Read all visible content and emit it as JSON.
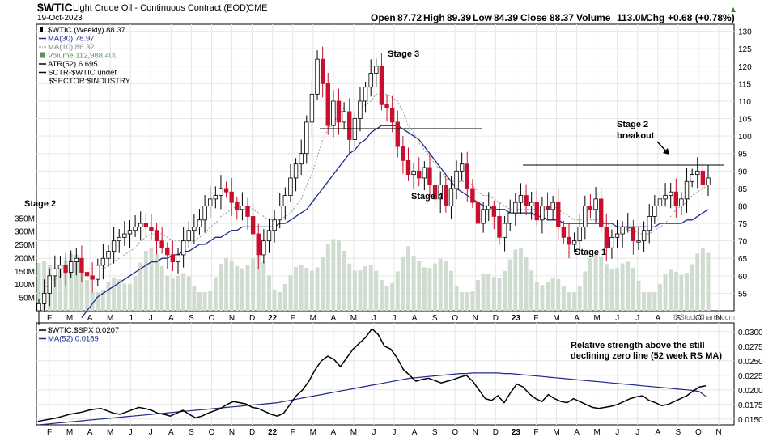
{
  "header": {
    "symbol": "$WTIC",
    "name": "Light Crude Oil - Continuous Contract (EOD)",
    "exchange": "CME",
    "date": "19-Oct-2023",
    "open_label": "Open",
    "open": "87.72",
    "high_label": "High",
    "high": "89.39",
    "low_label": "Low",
    "low": "84.39",
    "close_label": "Close",
    "close": "88.37",
    "volume_label": "Volume",
    "volume": "113.0M",
    "chg_label": "Chg",
    "chg": "+0.68 (+0.78%)",
    "watermark": "@StockCharts.com"
  },
  "legend": [
    {
      "text": "$WTIC (Weekly) 88.37",
      "color": "#000000",
      "mark": "candle"
    },
    {
      "text": "MA(30) 78.97",
      "color": "#1f2a8c",
      "mark": "line"
    },
    {
      "text": "MA(10) 86.32",
      "color": "#888888",
      "mark": "dotted"
    },
    {
      "text": "Volume 112,988,400",
      "color": "#5e8f5e",
      "mark": "bars"
    },
    {
      "text": "ATR(52) 6.695",
      "color": "#000000",
      "mark": "line"
    },
    {
      "text": "SCTR-$WTIC undef",
      "color": "#000000",
      "mark": "line"
    },
    {
      "text": "$SECTOR:$INDUSTRY",
      "color": "#000000",
      "mark": "none"
    }
  ],
  "annotations": {
    "stage2_left": "Stage 2",
    "stage3": "Stage 3",
    "stage4": "Stage 4",
    "stage1": "Stage 1",
    "stage2_breakout_1": "Stage 2",
    "stage2_breakout_2": "breakout",
    "rs_note_1": "Relative strength above the still",
    "rs_note_2": "declining zero line (52 week RS MA)"
  },
  "lower_legend": [
    {
      "text": "$WTIC:$SPX 0.0207",
      "color": "#000000"
    },
    {
      "text": "MA(52) 0.0189",
      "color": "#1f2a8c"
    }
  ],
  "colors": {
    "up": "#ffffff",
    "down": "#c8102e",
    "ma30": "#1f2a8c",
    "ma10": "#999999",
    "volume": "#cfdccf",
    "grid": "#e6e6e6"
  },
  "chart_data": [
    {
      "type": "candlestick",
      "title": "$WTIC Light Crude Oil - Continuous Contract (EOD) CME",
      "ylim": [
        50,
        132
      ],
      "yticks": [
        55,
        60,
        65,
        70,
        75,
        80,
        85,
        90,
        95,
        100,
        105,
        110,
        115,
        120,
        125,
        130
      ],
      "x_ticks": [
        "F",
        "M",
        "A",
        "M",
        "J",
        "J",
        "A",
        "S",
        "O",
        "N",
        "D",
        "22",
        "F",
        "M",
        "A",
        "M",
        "J",
        "J",
        "A",
        "S",
        "O",
        "N",
        "D",
        "23",
        "F",
        "M",
        "A",
        "M",
        "J",
        "J",
        "A",
        "S",
        "O",
        "N"
      ],
      "close": [
        52,
        55,
        60,
        62,
        63,
        61,
        64,
        65,
        61,
        60,
        59,
        63,
        65,
        67,
        70,
        71,
        72,
        73,
        74,
        75,
        74,
        73,
        70,
        68,
        66,
        64,
        66,
        70,
        73,
        74,
        76,
        80,
        82,
        83,
        85,
        84,
        81,
        79,
        80,
        77,
        72,
        66,
        70,
        73,
        76,
        80,
        83,
        88,
        92,
        95,
        104,
        112,
        122,
        115,
        103,
        110,
        104,
        107,
        99,
        105,
        110,
        114,
        118,
        120,
        109,
        108,
        104,
        97,
        93,
        89,
        90,
        88,
        91,
        86,
        82,
        86,
        80,
        85,
        90,
        92,
        85,
        81,
        75,
        79,
        80,
        77,
        71,
        75,
        78,
        81,
        83,
        80,
        81,
        76,
        80,
        79,
        81,
        74,
        71,
        69,
        70,
        74,
        80,
        79,
        82,
        74,
        68,
        71,
        72,
        74,
        74,
        70,
        70,
        73,
        77,
        80,
        82,
        83,
        84,
        80,
        82,
        87,
        89,
        90,
        86,
        88
      ],
      "ma10": [
        55,
        56,
        58,
        59,
        60,
        61,
        62,
        62,
        62,
        62,
        62,
        62,
        62,
        63,
        64,
        65,
        66,
        67,
        68,
        70,
        71,
        72,
        72,
        72,
        71,
        70,
        70,
        70,
        70,
        70,
        71,
        72,
        74,
        75,
        77,
        78,
        79,
        80,
        80,
        80,
        79,
        78,
        77,
        76,
        76,
        76,
        77,
        78,
        80,
        82,
        86,
        89,
        94,
        99,
        102,
        104,
        106,
        108,
        108,
        108,
        108,
        109,
        110,
        112,
        112,
        112,
        111,
        110,
        107,
        103,
        101,
        98,
        96,
        94,
        92,
        90,
        88,
        87,
        87,
        87,
        87,
        86,
        84,
        83,
        83,
        82,
        81,
        80,
        79,
        79,
        79,
        79,
        79,
        79,
        79,
        79,
        80,
        79,
        78,
        77,
        76,
        76,
        76,
        76,
        76,
        76,
        75,
        74,
        74,
        74,
        73,
        73,
        72,
        72,
        72,
        73,
        74,
        75,
        77,
        79,
        80,
        81,
        83,
        84,
        85,
        86
      ],
      "ma30": [
        null,
        null,
        null,
        null,
        null,
        null,
        null,
        null,
        48,
        50,
        52,
        54,
        55,
        56,
        57,
        58,
        59,
        60,
        61,
        62,
        63,
        64,
        64,
        65,
        65,
        66,
        66,
        67,
        67,
        68,
        69,
        69,
        70,
        71,
        71,
        72,
        73,
        73,
        74,
        74,
        74,
        74,
        74,
        74,
        74,
        75,
        75,
        76,
        77,
        78,
        79,
        81,
        83,
        85,
        87,
        89,
        91,
        93,
        95,
        96,
        98,
        99,
        101,
        102,
        103,
        103,
        103,
        103,
        102,
        101,
        100,
        99,
        97,
        95,
        93,
        91,
        89,
        87,
        85,
        84,
        83,
        82,
        81,
        80,
        80,
        79,
        79,
        79,
        78,
        78,
        78,
        78,
        78,
        77,
        77,
        76,
        76,
        76,
        75,
        75,
        75,
        75,
        75,
        75,
        75,
        75,
        75,
        75,
        74,
        74,
        74,
        74,
        74,
        74,
        74,
        74,
        75,
        75,
        75,
        75,
        75,
        76,
        76,
        77,
        78,
        79
      ],
      "volume_axis": [
        "50M",
        "100M",
        "150M",
        "200M",
        "250M",
        "300M",
        "350M"
      ],
      "volume_scale_max": 360
    },
    {
      "type": "line",
      "title": "$WTIC:$SPX",
      "ylim": [
        0.014,
        0.0315
      ],
      "yticks": [
        0.015,
        0.0175,
        0.02,
        0.0225,
        0.025,
        0.0275,
        0.03
      ],
      "series": [
        {
          "name": "$WTIC:$SPX",
          "values": [
            0.0146,
            0.0148,
            0.015,
            0.0152,
            0.0155,
            0.0158,
            0.016,
            0.0162,
            0.0165,
            0.0167,
            0.0168,
            0.0164,
            0.016,
            0.0158,
            0.0162,
            0.0166,
            0.017,
            0.0168,
            0.0165,
            0.016,
            0.0158,
            0.0155,
            0.016,
            0.0165,
            0.0158,
            0.0152,
            0.0155,
            0.016,
            0.0164,
            0.0168,
            0.0175,
            0.018,
            0.0178,
            0.0176,
            0.017,
            0.0168,
            0.0163,
            0.0158,
            0.0155,
            0.016,
            0.0175,
            0.019,
            0.02,
            0.0215,
            0.0235,
            0.025,
            0.0258,
            0.0252,
            0.024,
            0.0255,
            0.027,
            0.028,
            0.029,
            0.0305,
            0.0295,
            0.0275,
            0.027,
            0.0255,
            0.0235,
            0.0225,
            0.0215,
            0.0218,
            0.022,
            0.0216,
            0.0212,
            0.0215,
            0.0218,
            0.0222,
            0.0225,
            0.0215,
            0.02,
            0.0185,
            0.0182,
            0.019,
            0.0178,
            0.0195,
            0.021,
            0.0205,
            0.0193,
            0.0185,
            0.018,
            0.0192,
            0.0185,
            0.018,
            0.0178,
            0.0185,
            0.018,
            0.0175,
            0.017,
            0.0168,
            0.017,
            0.0172,
            0.0175,
            0.018,
            0.0185,
            0.0188,
            0.019,
            0.0182,
            0.0178,
            0.0173,
            0.0175,
            0.018,
            0.0185,
            0.019,
            0.0198,
            0.0205,
            0.0207
          ]
        },
        {
          "name": "MA(52)",
          "values": [
            0.014,
            0.0141,
            0.0142,
            0.0143,
            0.0144,
            0.0145,
            0.0146,
            0.0147,
            0.0148,
            0.0149,
            0.015,
            0.0151,
            0.0152,
            0.0153,
            0.0154,
            0.0155,
            0.0156,
            0.0157,
            0.0158,
            0.0159,
            0.016,
            0.0161,
            0.0162,
            0.0163,
            0.0164,
            0.0165,
            0.0166,
            0.0167,
            0.0168,
            0.0169,
            0.017,
            0.0171,
            0.0172,
            0.0173,
            0.0174,
            0.0175,
            0.0176,
            0.0177,
            0.0178,
            0.018,
            0.0182,
            0.0184,
            0.0186,
            0.0188,
            0.019,
            0.0192,
            0.0194,
            0.0196,
            0.0198,
            0.02,
            0.0202,
            0.0204,
            0.0206,
            0.0208,
            0.021,
            0.0212,
            0.0214,
            0.0216,
            0.0218,
            0.022,
            0.0221,
            0.0222,
            0.0223,
            0.0224,
            0.0225,
            0.0226,
            0.0227,
            0.0228,
            0.0228,
            0.0229,
            0.0229,
            0.0229,
            0.0229,
            0.0229,
            0.0228,
            0.0228,
            0.0227,
            0.0226,
            0.0225,
            0.0224,
            0.0223,
            0.0222,
            0.0221,
            0.022,
            0.0219,
            0.0218,
            0.0217,
            0.0216,
            0.0215,
            0.0214,
            0.0213,
            0.0212,
            0.0211,
            0.021,
            0.0209,
            0.0208,
            0.0207,
            0.0206,
            0.0205,
            0.0204,
            0.0203,
            0.0202,
            0.0201,
            0.02,
            0.0199,
            0.0197,
            0.0189
          ]
        }
      ]
    }
  ]
}
